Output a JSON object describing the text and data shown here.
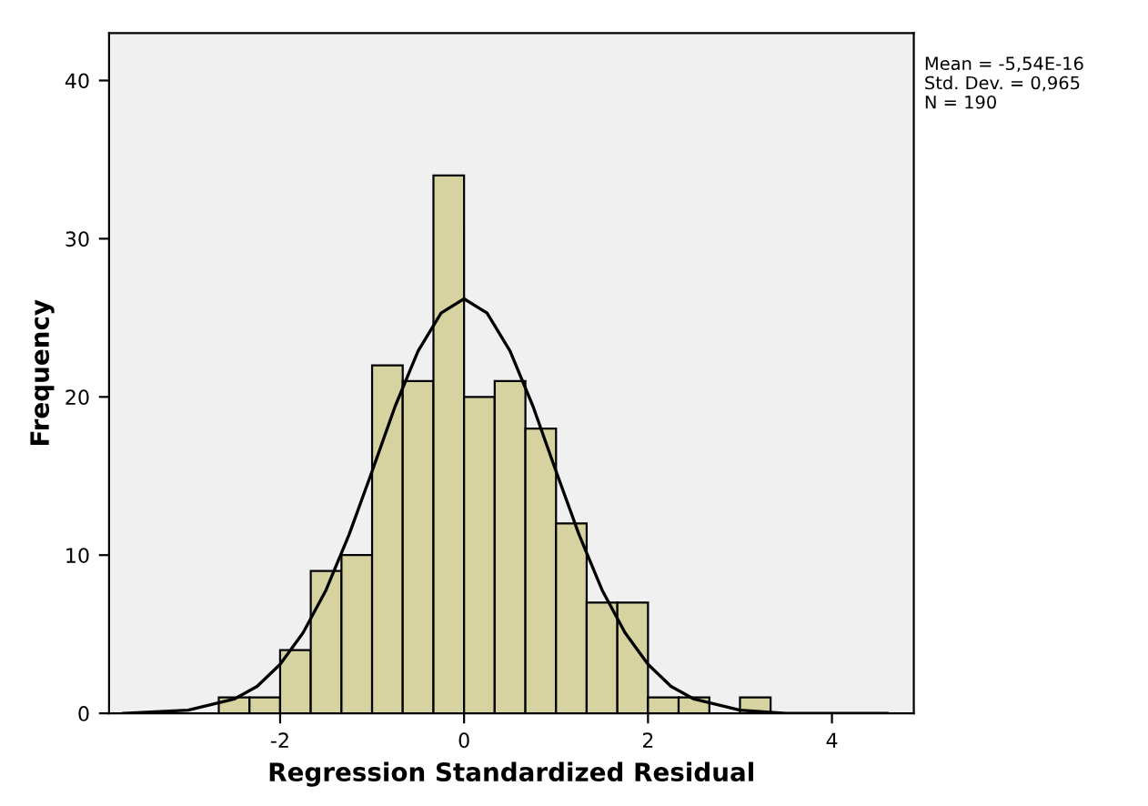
{
  "chart_data": {
    "type": "histogram",
    "xlabel": "Regression Standardized Residual",
    "ylabel": "Frequency",
    "bins": [
      -2.667,
      -2.333,
      -2.0,
      -1.667,
      -1.333,
      -1.0,
      -0.667,
      -0.333,
      0.0,
      0.333,
      0.667,
      1.0,
      1.333,
      1.667,
      2.0,
      2.333,
      2.667,
      3.0,
      3.333
    ],
    "values": [
      1,
      1,
      4,
      9,
      10,
      22,
      21,
      34,
      20,
      21,
      18,
      12,
      7,
      7,
      1,
      1,
      0,
      1
    ],
    "color": "#d6d3a0",
    "series": [
      {
        "type": "line",
        "color": "#000000",
        "x": [
          -3.7,
          -3,
          -2.5,
          -2.25,
          -2,
          -1.75,
          -1.5,
          -1.25,
          -1,
          -0.75,
          -0.5,
          -0.25,
          0,
          0.25,
          0.5,
          0.75,
          1,
          1.25,
          1.5,
          1.75,
          2,
          2.25,
          2.5,
          3,
          3.5,
          4.6
        ],
        "values": [
          0,
          0.2,
          0.9,
          1.7,
          3.1,
          5.1,
          7.8,
          11.3,
          15.3,
          19.4,
          22.9,
          25.3,
          26.2,
          25.3,
          22.9,
          19.4,
          15.3,
          11.3,
          7.8,
          5.1,
          3.1,
          1.7,
          0.9,
          0.2,
          0,
          0
        ]
      }
    ],
    "xlim": [
      -3.86,
      4.89
    ],
    "ylim": [
      0,
      43
    ],
    "xticks": [
      -2,
      0,
      2,
      4
    ],
    "yticks": [
      0,
      10,
      20,
      30,
      40
    ],
    "grid": false,
    "legend": false,
    "annotations": [
      "Mean = -5,54E-16",
      "Std. Dev. = 0,965",
      "N = 190"
    ]
  }
}
